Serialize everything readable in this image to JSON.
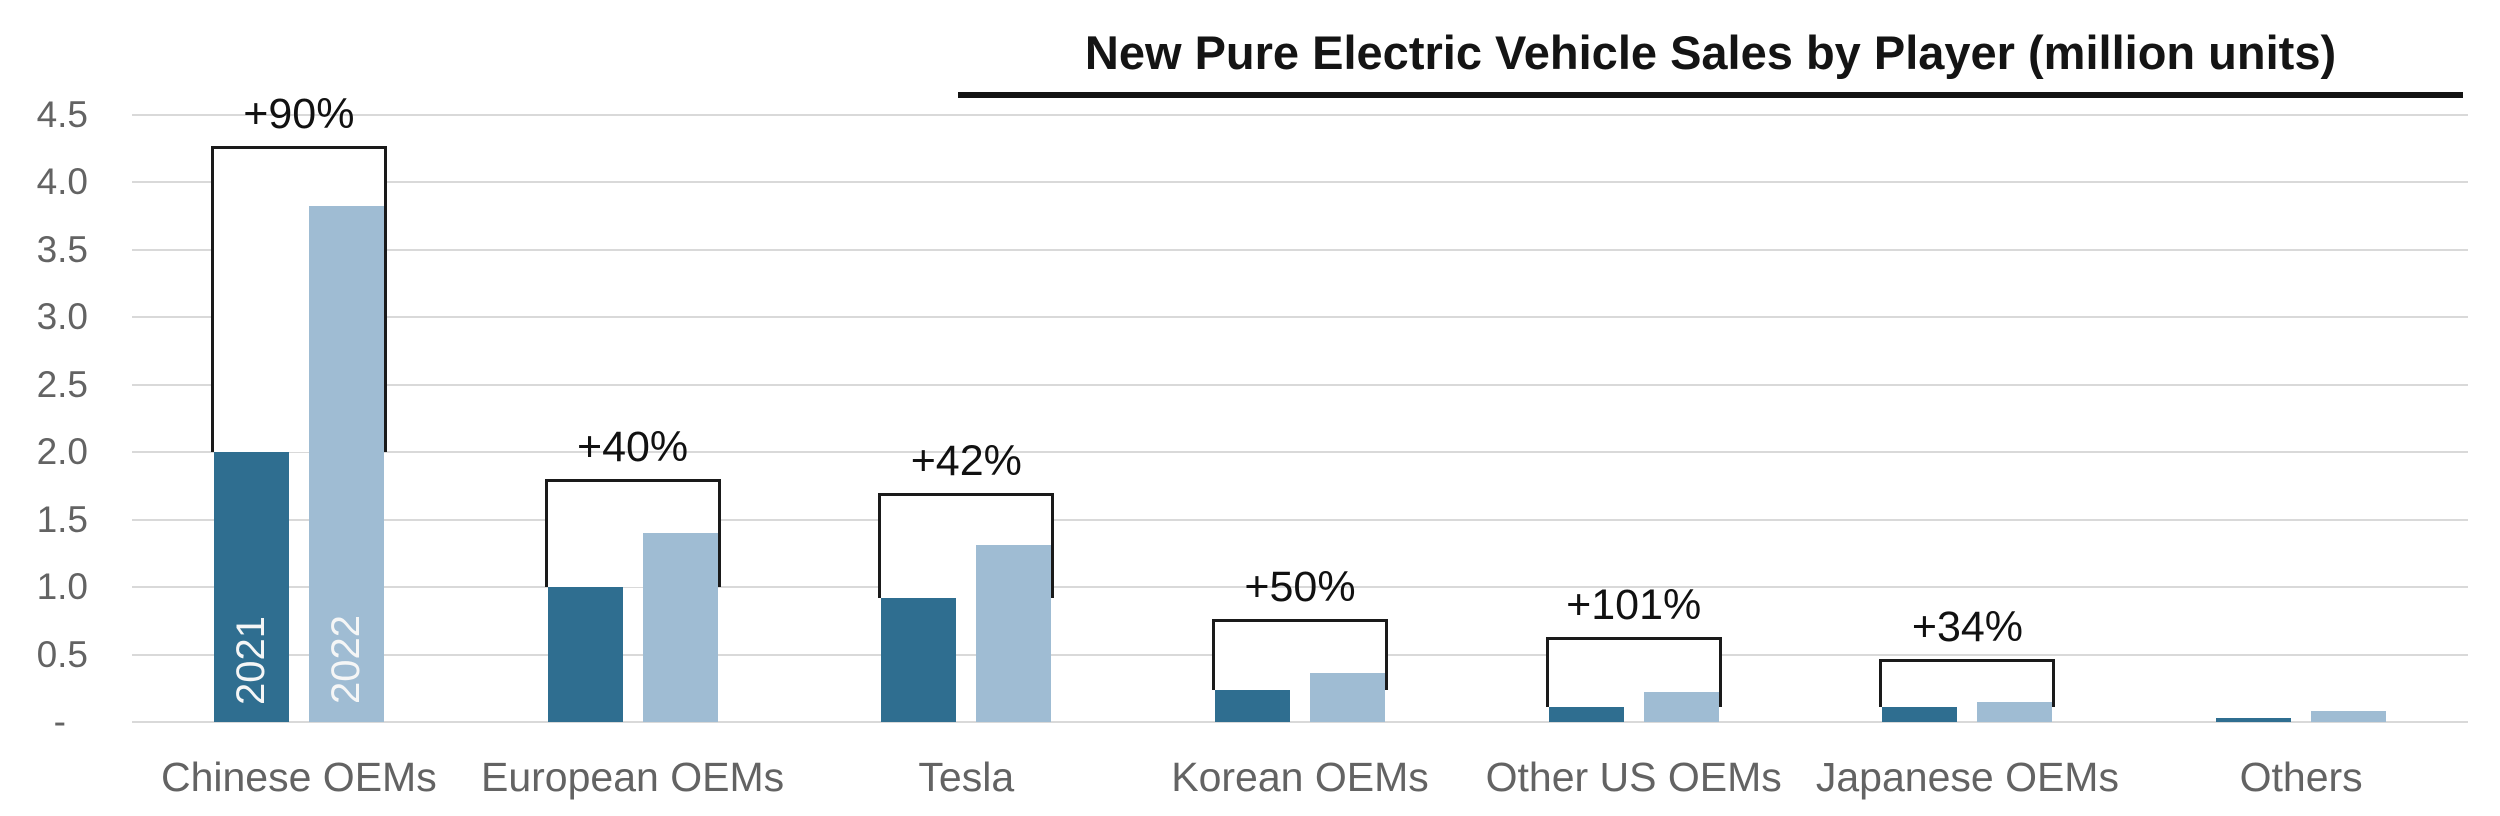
{
  "header": {
    "title": "New Pure Electric Vehicle Sales by Player (million units)"
  },
  "colors": {
    "bar_2021": "#2F6E90",
    "bar_2022": "#9FBCD3",
    "gridline": "#D9D9D9",
    "axis_text": "#636363",
    "title_text": "#141414",
    "bracket_line": "#1A1A1A",
    "bar_year_label_text": "#F5F6F6",
    "growth_label_text": "#111111",
    "background": "#FFFFFF"
  },
  "chart_data": {
    "type": "bar",
    "title": "New Pure Electric Vehicle Sales by Player (million units)",
    "xlabel": "",
    "ylabel": "",
    "unit": "million units",
    "grid": true,
    "legend_position": "labels-inside-first-bars",
    "categories": [
      "Chinese OEMs",
      "European OEMs",
      "Tesla",
      "Korean OEMs",
      "Other US OEMs",
      "Japanese OEMs",
      "Others"
    ],
    "series": [
      {
        "name": "2021",
        "color": "#2F6E90",
        "values": [
          2.0,
          1.0,
          0.92,
          0.24,
          0.11,
          0.11,
          0.03
        ]
      },
      {
        "name": "2022",
        "color": "#9FBCD3",
        "values": [
          3.82,
          1.4,
          1.31,
          0.36,
          0.22,
          0.15,
          0.08
        ]
      }
    ],
    "growth_labels": [
      "+90%",
      "+40%",
      "+42%",
      "+50%",
      "+101%",
      "+34%",
      null
    ],
    "bracket_top_values": [
      4.27,
      1.8,
      1.7,
      0.76,
      0.63,
      0.47,
      null
    ],
    "bar_year_labels": {
      "category_index": 0,
      "labels": [
        "2021",
        "2022"
      ]
    },
    "y_axis": {
      "range": [
        0,
        4.5
      ],
      "ticks": [
        {
          "value": 4.5,
          "label": "4.5"
        },
        {
          "value": 4.0,
          "label": "4.0"
        },
        {
          "value": 3.5,
          "label": "3.5"
        },
        {
          "value": 3.0,
          "label": "3.0"
        },
        {
          "value": 2.5,
          "label": "2.5"
        },
        {
          "value": 2.0,
          "label": "2.0"
        },
        {
          "value": 1.5,
          "label": "1.5"
        },
        {
          "value": 1.0,
          "label": "1.0"
        },
        {
          "value": 0.5,
          "label": "0.5"
        },
        {
          "value": 0,
          "label": "-"
        }
      ]
    }
  }
}
